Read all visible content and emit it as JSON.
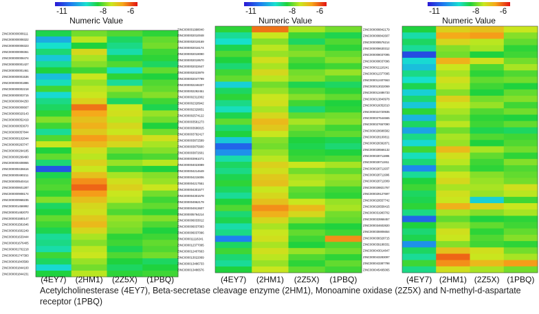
{
  "caption": "Acetylcholinesterase (4EY7), Beta-secretase cleavage enzyme (2HM1), Monoamine oxidase (2Z5X) and N-methyl-d-aspartate receptor (1PBQ)",
  "chart_data": [
    {
      "type": "heatmap",
      "panel": "left",
      "colorbar": {
        "title": "Numeric Value",
        "ticks": [
          -11,
          -8,
          -6
        ],
        "range": [
          -11.5,
          -5.5
        ]
      },
      "columns": [
        "(4EY7)",
        "(2HM1)",
        "(2Z5X)",
        "(1PBQ)"
      ],
      "rows": [
        "ZINC000000008111",
        "ZINC000000008322",
        "ZINC000000008323",
        "ZINC000000008361",
        "ZINC000000008474",
        "ZINC000000001427",
        "ZINC000000001461",
        "ZINC000000001536",
        "ZINC000000001886",
        "ZINC000000002218",
        "ZINC000000003715",
        "ZINC000000004250",
        "ZINC000000008667",
        "ZINC000000020143",
        "ZINC000000052419",
        "ZINC000000053670",
        "ZINC000000057844",
        "ZINC000000102044",
        "ZINC000000263747",
        "ZINC000000294185",
        "ZINC000000299490",
        "ZINC000000408865",
        "ZINC000000436616",
        "ZINC000000490211",
        "ZINC000000540414",
        "ZINC000000601287",
        "ZINC000000908174",
        "ZINC000000968235",
        "ZINC000001456992",
        "ZINC000001482070",
        "ZINC000001580147",
        "ZINC000001581646",
        "ZINC000001602249",
        "ZINC000001633444",
        "ZINC000001676405",
        "ZINC000001702218",
        "ZINC000001747393",
        "ZINC000001843599",
        "ZINC000001844100",
        "ZINC000001844231"
      ],
      "values": [
        [
          -8.5,
          -7.9,
          -8.1,
          -8.3
        ],
        [
          -9.8,
          -7.5,
          -8.6,
          -8.0
        ],
        [
          -9.2,
          -8.4,
          -8.8,
          -7.9
        ],
        [
          -8.7,
          -7.2,
          -9.0,
          -8.2
        ],
        [
          -9.5,
          -7.6,
          -8.5,
          -8.3
        ],
        [
          -8.9,
          -7.8,
          -8.1,
          -8.6
        ],
        [
          -8.4,
          -8.2,
          -9.1,
          -8.0
        ],
        [
          -9.6,
          -7.4,
          -8.3,
          -8.4
        ],
        [
          -9.1,
          -7.7,
          -8.9,
          -8.1
        ],
        [
          -8.2,
          -7.5,
          -7.7,
          -8.0
        ],
        [
          -9.3,
          -7.4,
          -8.0,
          -7.8
        ],
        [
          -8.8,
          -7.1,
          -8.6,
          -8.2
        ],
        [
          -8.6,
          -6.2,
          -7.4,
          -8.5
        ],
        [
          -8.3,
          -6.6,
          -7.3,
          -7.7
        ],
        [
          -7.8,
          -6.9,
          -7.5,
          -7.9
        ],
        [
          -8.2,
          -6.7,
          -7.2,
          -8.4
        ],
        [
          -8.9,
          -7.0,
          -7.4,
          -7.9
        ],
        [
          -8.1,
          -6.5,
          -6.9,
          -7.3
        ],
        [
          -7.4,
          -6.8,
          -7.2,
          -7.6
        ],
        [
          -8.4,
          -7.3,
          -7.9,
          -7.8
        ],
        [
          -8.0,
          -7.5,
          -8.2,
          -8.1
        ],
        [
          -8.7,
          -7.1,
          -7.7,
          -7.5
        ],
        [
          -10.8,
          -7.4,
          -8.2,
          -8.4
        ],
        [
          -8.5,
          -6.9,
          -7.6,
          -7.8
        ],
        [
          -8.2,
          -6.4,
          -7.3,
          -7.7
        ],
        [
          -8.1,
          -6.1,
          -7.1,
          -7.4
        ],
        [
          -8.3,
          -6.5,
          -7.4,
          -7.9
        ],
        [
          -7.8,
          -6.9,
          -7.5,
          -8.2
        ],
        [
          -8.6,
          -7.2,
          -7.9,
          -8.0
        ],
        [
          -8.4,
          -7.3,
          -8.1,
          -8.3
        ],
        [
          -8.0,
          -7.0,
          -7.7,
          -7.8
        ],
        [
          -8.2,
          -6.8,
          -7.8,
          -8.1
        ],
        [
          -8.5,
          -7.2,
          -7.9,
          -8.4
        ],
        [
          -8.9,
          -7.6,
          -8.3,
          -8.2
        ],
        [
          -8.8,
          -7.8,
          -8.2,
          -8.0
        ],
        [
          -9.0,
          -7.5,
          -8.5,
          -8.1
        ],
        [
          -8.2,
          -7.4,
          -8.1,
          -7.9
        ],
        [
          -8.6,
          -7.7,
          -8.4,
          -8.6
        ],
        [
          -9.3,
          -7.9,
          -8.6,
          -8.4
        ],
        [
          -8.4,
          -7.5,
          -8.3,
          -8.2
        ]
      ]
    },
    {
      "type": "heatmap",
      "panel": "middle",
      "colorbar": {
        "title": "Numeric Value",
        "ticks": [
          -11,
          -8,
          -6
        ],
        "range": [
          -11.5,
          -5.5
        ]
      },
      "columns": [
        "(4EY7)",
        "(2HM1)",
        "(2Z5X)",
        "(1PBQ)"
      ],
      "rows": [
        "ZINC000001998040",
        "ZINC000002010048",
        "ZINC000002019169",
        "ZINC000002016174",
        "ZINC000002019090",
        "ZINC000002019570",
        "ZINC000002022647",
        "ZINC000002023979",
        "ZINC000002047799",
        "ZINC000002246337",
        "ZINC000002292451",
        "ZINC000002312002",
        "ZINC000002328942",
        "ZINC000002329831",
        "ZINC000002574122",
        "ZINC000003581273",
        "ZINC000003686815",
        "ZINC000003792417",
        "ZINC000003872599",
        "ZINC000003875600",
        "ZINC000003872601",
        "ZINC000003961071",
        "ZINC000004023089",
        "ZINC000004214649",
        "ZINC000004215006",
        "ZINC000004217551",
        "ZINC000004301577",
        "ZINC000004301578",
        "ZINC000004962179",
        "ZINC000004913607",
        "ZINC000005764214",
        "ZINC000006033012",
        "ZINC000006037093",
        "ZINC000006037096",
        "ZINC000011118241",
        "ZINC000012377095",
        "ZINC000012407663",
        "ZINC000013022069",
        "ZINC000013486733",
        "ZINC000013486576"
      ],
      "values": [
        [
          -8.3,
          -6.2,
          -7.6,
          -7.9
        ],
        [
          -8.9,
          -7.4,
          -8.2,
          -8.5
        ],
        [
          -9.2,
          -7.8,
          -8.6,
          -8.1
        ],
        [
          -8.5,
          -7.5,
          -8.0,
          -8.3
        ],
        [
          -8.1,
          -7.7,
          -7.8,
          -8.0
        ],
        [
          -8.4,
          -7.3,
          -8.1,
          -7.8
        ],
        [
          -8.7,
          -7.6,
          -8.3,
          -8.2
        ],
        [
          -8.2,
          -7.2,
          -7.9,
          -7.7
        ],
        [
          -8.0,
          -7.5,
          -7.8,
          -8.1
        ],
        [
          -9.4,
          -7.9,
          -8.5,
          -8.6
        ],
        [
          -8.6,
          -7.7,
          -8.1,
          -8.3
        ],
        [
          -8.3,
          -7.4,
          -7.8,
          -8.0
        ],
        [
          -8.8,
          -7.3,
          -8.2,
          -8.4
        ],
        [
          -9.1,
          -7.6,
          -8.7,
          -8.3
        ],
        [
          -8.5,
          -7.2,
          -8.0,
          -7.9
        ],
        [
          -8.0,
          -6.8,
          -7.6,
          -7.8
        ],
        [
          -8.7,
          -7.0,
          -7.9,
          -8.2
        ],
        [
          -8.4,
          -7.4,
          -8.1,
          -8.0
        ],
        [
          -9.5,
          -7.8,
          -8.4,
          -8.5
        ],
        [
          -10.6,
          -7.9,
          -8.5,
          -8.7
        ],
        [
          -10.1,
          -7.7,
          -8.3,
          -8.4
        ],
        [
          -9.0,
          -7.5,
          -8.2,
          -8.1
        ],
        [
          -8.6,
          -7.1,
          -7.4,
          -7.6
        ],
        [
          -8.8,
          -7.3,
          -7.9,
          -8.0
        ],
        [
          -8.5,
          -7.0,
          -7.6,
          -7.7
        ],
        [
          -8.3,
          -6.9,
          -7.5,
          -7.8
        ],
        [
          -8.6,
          -7.4,
          -8.0,
          -8.2
        ],
        [
          -8.9,
          -7.2,
          -8.1,
          -8.3
        ],
        [
          -8.4,
          -6.9,
          -7.4,
          -7.7
        ],
        [
          -8.1,
          -6.4,
          -6.8,
          -7.6
        ],
        [
          -8.7,
          -6.7,
          -7.2,
          -7.9
        ],
        [
          -8.5,
          -7.2,
          -7.8,
          -8.0
        ],
        [
          -9.0,
          -7.6,
          -8.3,
          -8.4
        ],
        [
          -8.8,
          -7.4,
          -8.0,
          -8.2
        ],
        [
          -10.3,
          -7.3,
          -8.2,
          -6.4
        ],
        [
          -8.6,
          -7.6,
          -8.4,
          -8.1
        ],
        [
          -8.2,
          -7.3,
          -7.7,
          -7.9
        ],
        [
          -8.7,
          -7.5,
          -8.1,
          -8.3
        ],
        [
          -8.9,
          -7.7,
          -8.3,
          -8.0
        ],
        [
          -8.4,
          -7.4,
          -8.0,
          -8.2
        ]
      ]
    },
    {
      "type": "heatmap",
      "panel": "right",
      "colorbar": {
        "title": "Numeric Value",
        "ticks": [
          -11,
          -8,
          -6
        ],
        "range": [
          -11.5,
          -5.5
        ]
      },
      "columns": [
        "(4EY7)",
        "(2HM1)",
        "(2Z5X)",
        "(1PBQ)"
      ],
      "rows": [
        "ZINC000008842179",
        "ZINC000008842607",
        "ZINC000008576214",
        "ZINC000008630312",
        "ZINC000008037095",
        "ZINC000008037096",
        "ZINC000011118241",
        "ZINC000012377095",
        "ZINC000012407663",
        "ZINC000013022069",
        "ZINC000013486733",
        "ZINC000013840978",
        "ZINC000016052010",
        "ZINC000024720935",
        "ZINC000027644665",
        "ZINC000027657090",
        "ZINC000028686582",
        "ZINC000028100811",
        "ZINC000028392871",
        "ZINC000028566132",
        "ZINC000028711886",
        "ZINC000028711911",
        "ZINC000028711937",
        "ZINC000028711996",
        "ZINC000028712009",
        "ZINC000028821767",
        "ZINC000029127697",
        "ZINC000029557742",
        "ZINC000029558415",
        "ZINC000031983702",
        "ZINC000033958457",
        "ZINC000034602820",
        "ZINC000035906654",
        "ZINC000038328715",
        "ZINC000039188331",
        "ZINC000043014847",
        "ZINC000043283097",
        "ZINC000043387798",
        "ZINC000045495065"
      ],
      "values": [
        [
          -8.4,
          -7.1,
          -6.9,
          -7.4
        ],
        [
          -9.0,
          -6.6,
          -6.5,
          -7.8
        ],
        [
          -8.6,
          -7.2,
          -7.5,
          -8.0
        ],
        [
          -8.9,
          -7.8,
          -7.6,
          -8.3
        ],
        [
          -10.9,
          -7.9,
          -8.4,
          -8.2
        ],
        [
          -9.3,
          -6.7,
          -7.3,
          -7.9
        ],
        [
          -9.6,
          -7.4,
          -8.1,
          -7.6
        ],
        [
          -8.8,
          -7.6,
          -8.3,
          -8.1
        ],
        [
          -9.2,
          -7.3,
          -8.0,
          -7.9
        ],
        [
          -8.5,
          -7.5,
          -8.2,
          -8.4
        ],
        [
          -9.4,
          -7.8,
          -8.4,
          -8.0
        ],
        [
          -8.7,
          -7.1,
          -7.9,
          -7.8
        ],
        [
          -9.5,
          -7.4,
          -7.7,
          -8.2
        ],
        [
          -8.3,
          -7.6,
          -8.1,
          -7.9
        ],
        [
          -9.7,
          -7.8,
          -8.3,
          -8.4
        ],
        [
          -8.6,
          -7.5,
          -8.2,
          -8.0
        ],
        [
          -9.9,
          -7.9,
          -8.5,
          -8.6
        ],
        [
          -8.8,
          -7.6,
          -8.1,
          -8.2
        ],
        [
          -9.3,
          -7.7,
          -8.4,
          -8.1
        ],
        [
          -8.2,
          -6.8,
          -7.6,
          -7.9
        ],
        [
          -9.1,
          -7.3,
          -8.0,
          -8.3
        ],
        [
          -8.7,
          -7.5,
          -8.2,
          -7.8
        ],
        [
          -10.2,
          -7.8,
          -8.3,
          -8.1
        ],
        [
          -8.9,
          -7.4,
          -7.8,
          -8.0
        ],
        [
          -8.4,
          -7.2,
          -7.7,
          -7.9
        ],
        [
          -8.2,
          -7.6,
          -7.6,
          -7.3
        ],
        [
          -8.6,
          -7.3,
          -7.7,
          -7.5
        ],
        [
          -8.5,
          -7.4,
          -9.4,
          -8.2
        ],
        [
          -8.3,
          -6.7,
          -7.1,
          -7.4
        ],
        [
          -8.8,
          -7.6,
          -7.8,
          -7.6
        ],
        [
          -10.6,
          -8.0,
          -8.4,
          -8.3
        ],
        [
          -8.4,
          -7.7,
          -8.0,
          -8.2
        ],
        [
          -8.7,
          -7.3,
          -8.3,
          -8.0
        ],
        [
          -8.5,
          -7.4,
          -8.1,
          -7.8
        ],
        [
          -10.1,
          -7.8,
          -8.2,
          -8.3
        ],
        [
          -8.6,
          -6.9,
          -7.3,
          -7.9
        ],
        [
          -8.9,
          -6.1,
          -7.4,
          -7.6
        ],
        [
          -8.2,
          -6.4,
          -6.8,
          -6.5
        ],
        [
          -8.8,
          -7.3,
          -7.6,
          -7.9
        ]
      ]
    }
  ]
}
